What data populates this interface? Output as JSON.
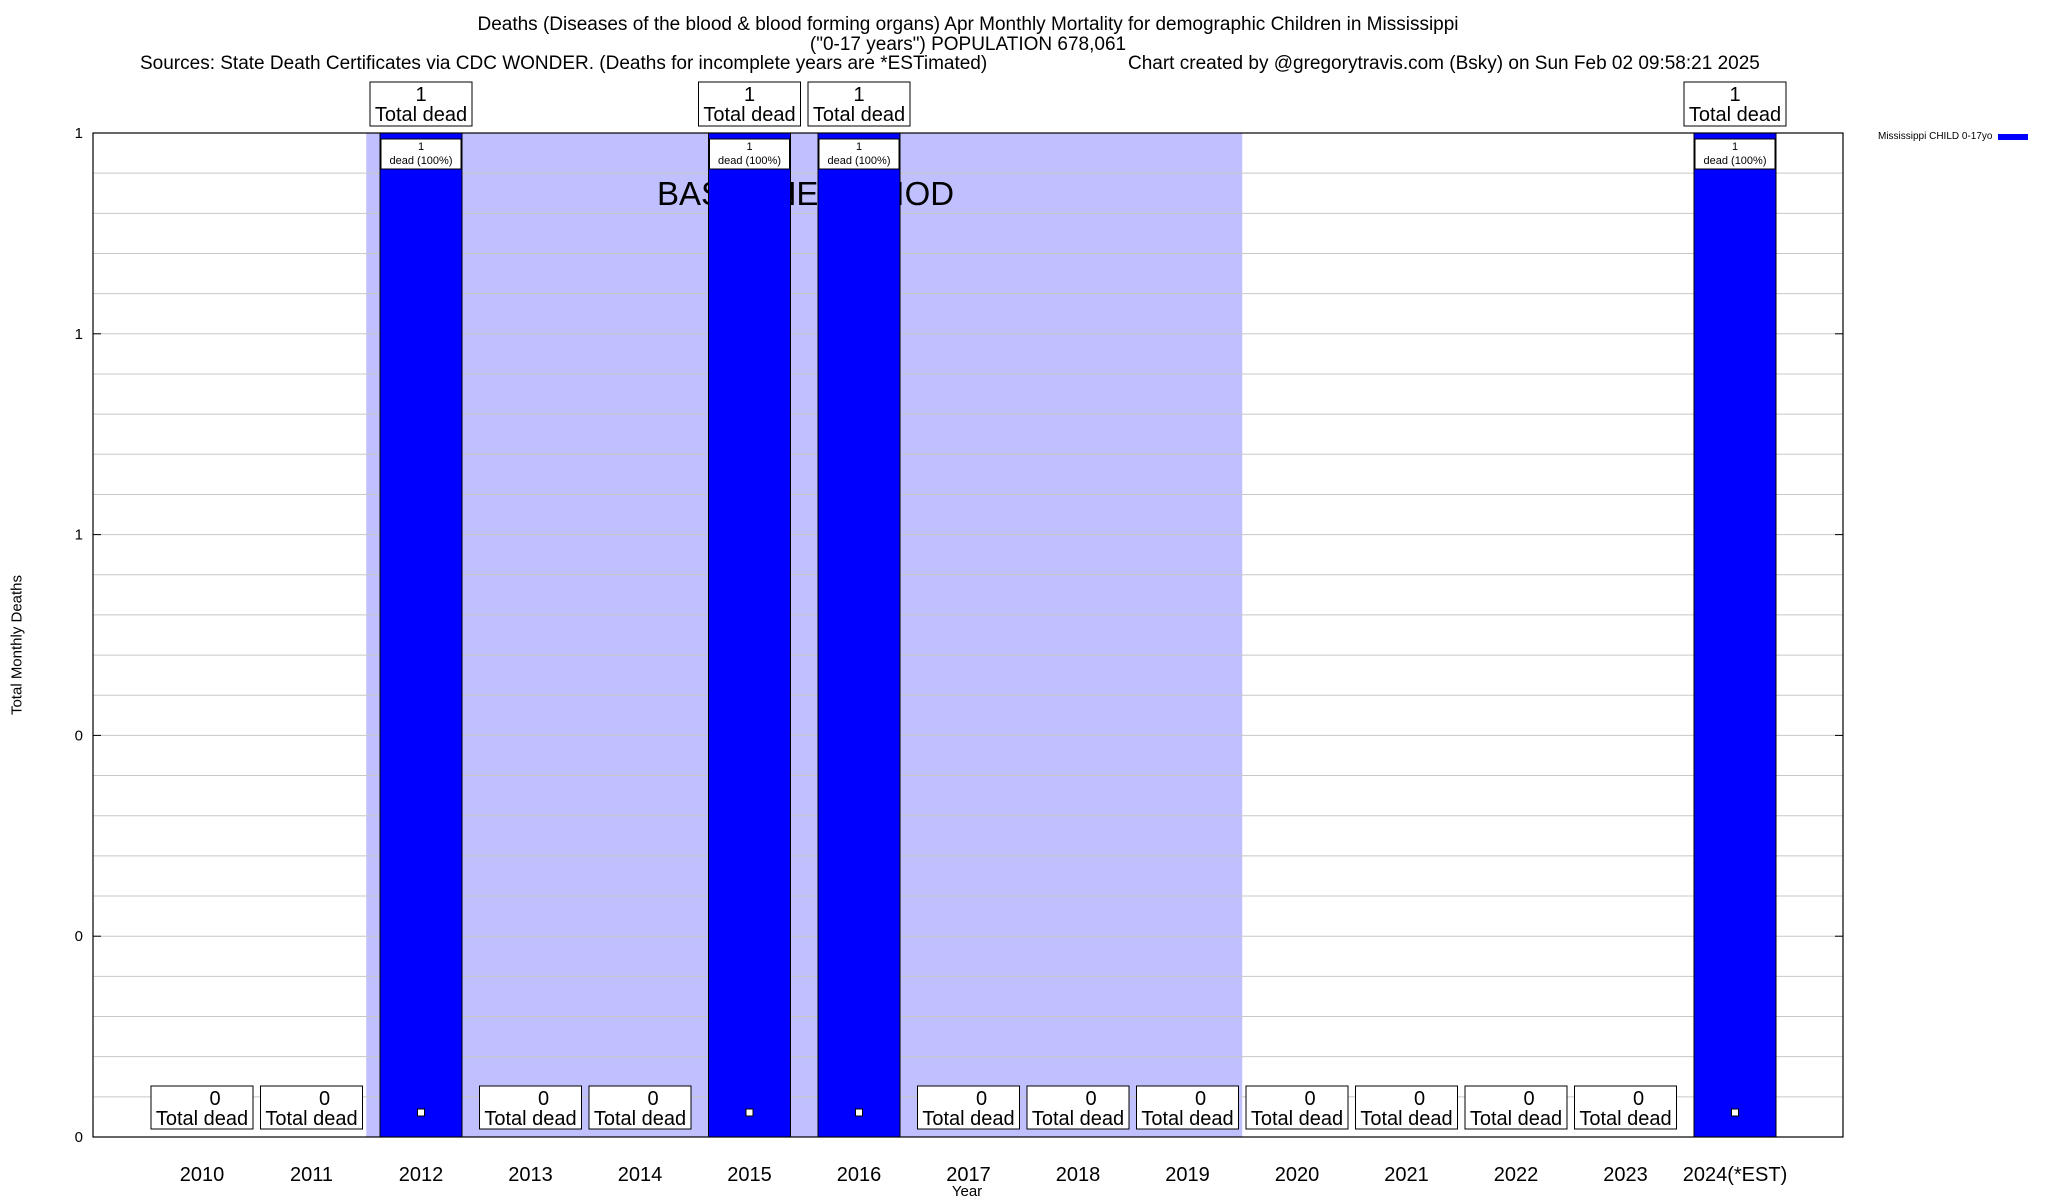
{
  "chart_data": {
    "type": "bar",
    "title": "Deaths (Diseases of the blood & blood forming organs) Apr Monthly Mortality for demographic Children in Mississippi",
    "subtitle": "(\"0-17 years\") POPULATION 678,061",
    "sources": "Sources: State Death Certificates via CDC WONDER. (Deaths for incomplete years are *ESTimated)",
    "credit": "Chart created by @gregorytravis.com (Bsky) on Sun Feb 02 09:58:21 2025",
    "xlabel": "Year",
    "ylabel": "Total Monthly Deaths",
    "categories": [
      "2010",
      "2011",
      "2012",
      "2013",
      "2014",
      "2015",
      "2016",
      "2017",
      "2018",
      "2019",
      "2020",
      "2021",
      "2022",
      "2023",
      "2024(*EST)"
    ],
    "series": [
      {
        "name": "Mississippi CHILD 0-17yo",
        "values": [
          0,
          0,
          1,
          0,
          0,
          1,
          1,
          0,
          0,
          0,
          0,
          0,
          0,
          0,
          1
        ],
        "color": "#0000ff"
      }
    ],
    "ylim": [
      0,
      1
    ],
    "ytick_labels": [
      "0",
      "0",
      "0",
      "1",
      "1",
      "1"
    ],
    "total_label_word": "Total dead",
    "bar_label_text": "dead (100%)",
    "baseline": {
      "label": "BASELINE PERIOD",
      "from": "2012",
      "to": "2019",
      "color": "#c0c0ff"
    },
    "grid": true,
    "legend_position": "outside-top-right"
  }
}
